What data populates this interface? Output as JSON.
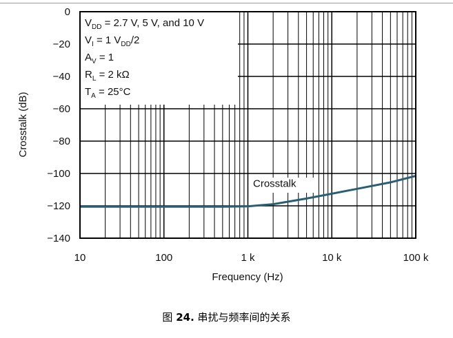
{
  "chart_data": {
    "type": "line",
    "xlabel": "Frequency (Hz)",
    "ylabel": "Crosstalk (dB)",
    "x_scale": "log",
    "xlim": [
      10,
      100000
    ],
    "ylim": [
      -140,
      0
    ],
    "x_ticks": [
      {
        "value": 10,
        "label": "10"
      },
      {
        "value": 100,
        "label": "100"
      },
      {
        "value": 1000,
        "label": "1 k"
      },
      {
        "value": 10000,
        "label": "10 k"
      },
      {
        "value": 100000,
        "label": "100 k"
      }
    ],
    "y_ticks": [
      {
        "value": 0,
        "label": "0"
      },
      {
        "value": -20,
        "label": "−20"
      },
      {
        "value": -40,
        "label": "−40"
      },
      {
        "value": -60,
        "label": "−60"
      },
      {
        "value": -80,
        "label": "−80"
      },
      {
        "value": -100,
        "label": "−100"
      },
      {
        "value": -120,
        "label": "−120"
      },
      {
        "value": -140,
        "label": "−140"
      }
    ],
    "grid": true,
    "series": [
      {
        "name": "Crosstalk",
        "color": "#2a5f73",
        "x": [
          10,
          20,
          50,
          100,
          200,
          500,
          1000,
          2000,
          5000,
          10000,
          20000,
          50000,
          100000
        ],
        "y": [
          -120.5,
          -120.5,
          -120.5,
          -120.5,
          -120.5,
          -120.5,
          -120.3,
          -119,
          -115.5,
          -112.5,
          -109.5,
          -105.5,
          -101.5
        ]
      }
    ],
    "conditions": [
      {
        "main": "V",
        "sub": "DD",
        "rest": " = 2.7 V, 5 V, and 10 V"
      },
      {
        "main": "V",
        "sub": "I",
        "rest": " = 1 V",
        "sub2": "DD",
        "rest2": "/2"
      },
      {
        "main": "A",
        "sub": "V",
        "rest": " = 1"
      },
      {
        "main": "R",
        "sub": "L",
        "rest": " = 2 kΩ"
      },
      {
        "main": "T",
        "sub": "A",
        "rest": " = 25°C"
      }
    ],
    "annotation": {
      "text": "Crosstalk",
      "x": 3200,
      "y": -110
    }
  },
  "caption": {
    "prefix": "图 ",
    "number": "24.",
    "text": " 串扰与频率间的关系"
  }
}
